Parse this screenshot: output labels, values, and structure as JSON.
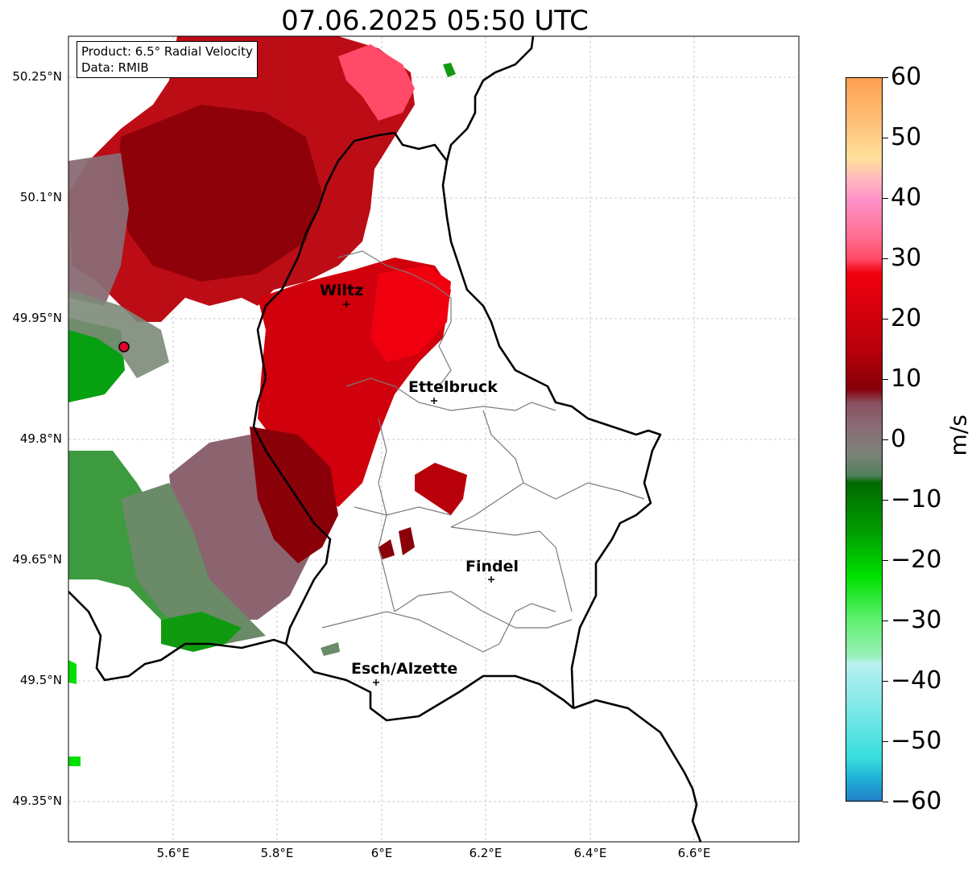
{
  "title": "07.06.2025 05:50 UTC",
  "info": {
    "product": "Product: 6.5° Radial Velocity",
    "data": "Data: RMIB"
  },
  "y_ticks": [
    "50.25°N",
    "50.1°N",
    "49.95°N",
    "49.8°N",
    "49.65°N",
    "49.5°N",
    "49.35°N"
  ],
  "x_ticks": [
    "5.6°E",
    "5.8°E",
    "6°E",
    "6.2°E",
    "6.4°E",
    "6.6°E"
  ],
  "colorbar": {
    "label": "m/s",
    "ticks": [
      "60",
      "50",
      "40",
      "30",
      "20",
      "10",
      "0",
      "−10",
      "−20",
      "−30",
      "−40",
      "−50",
      "−60"
    ],
    "range": [
      -60,
      60
    ]
  },
  "cities": [
    {
      "name": "Wiltz",
      "lon": 5.93,
      "lat": 49.966
    },
    {
      "name": "Ettelbruck",
      "lon": 6.1,
      "lat": 49.846
    },
    {
      "name": "Findel",
      "lon": 6.21,
      "lat": 49.627
    },
    {
      "name": "Esch/Alzette",
      "lon": 5.99,
      "lat": 49.5
    }
  ],
  "radar_site": {
    "lon": 5.505,
    "lat": 49.914
  },
  "colors": {
    "inbound_green": "#00a000",
    "outbound_red": "#d4000e",
    "grey_zero": "#7d6a70"
  }
}
